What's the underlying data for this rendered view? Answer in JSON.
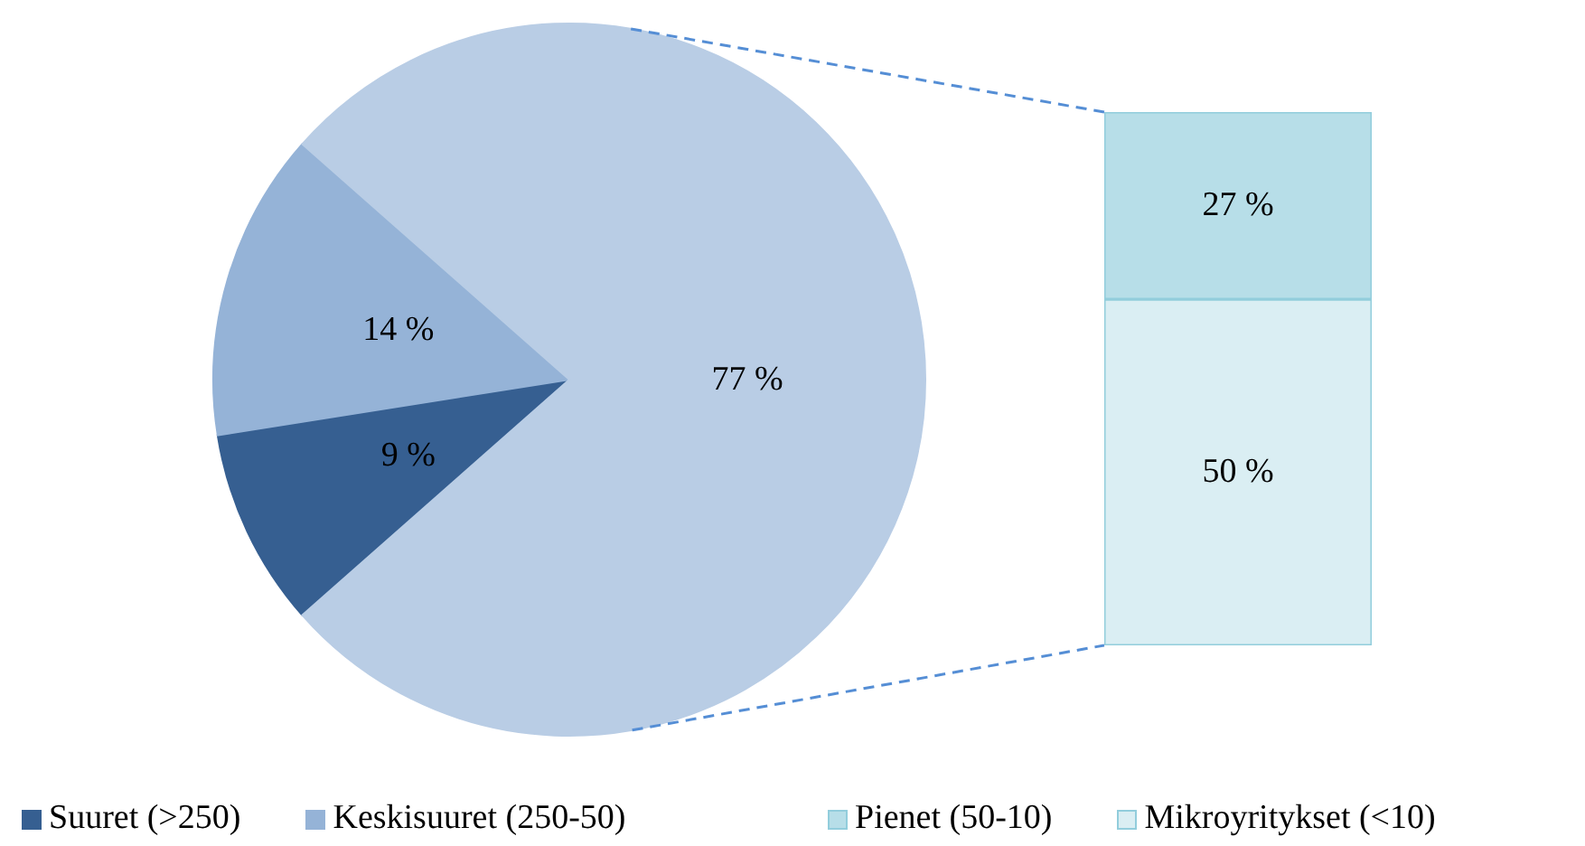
{
  "chart_data": [
    {
      "type": "pie",
      "categories": [
        "Suuret (>250)",
        "Keskisuuret (250-50)",
        null
      ],
      "values": [
        9,
        14,
        77
      ],
      "colors": [
        "#365f91",
        "#95b3d7",
        "#b9cde5"
      ],
      "value_labels": [
        "9 %",
        "14 %",
        "77 %"
      ],
      "legend": "bottom"
    },
    {
      "type": "bar",
      "stacked": true,
      "categories": [
        null
      ],
      "series": [
        {
          "name": "Mikroyritykset (<10)",
          "color": "#daeef3",
          "values": [
            50
          ],
          "value_labels": [
            "50 %"
          ]
        },
        {
          "name": "Pienet (50-10)",
          "color": "#b7dee8",
          "values": [
            27
          ],
          "value_labels": [
            "27 %"
          ]
        }
      ],
      "legend": "bottom"
    }
  ]
}
